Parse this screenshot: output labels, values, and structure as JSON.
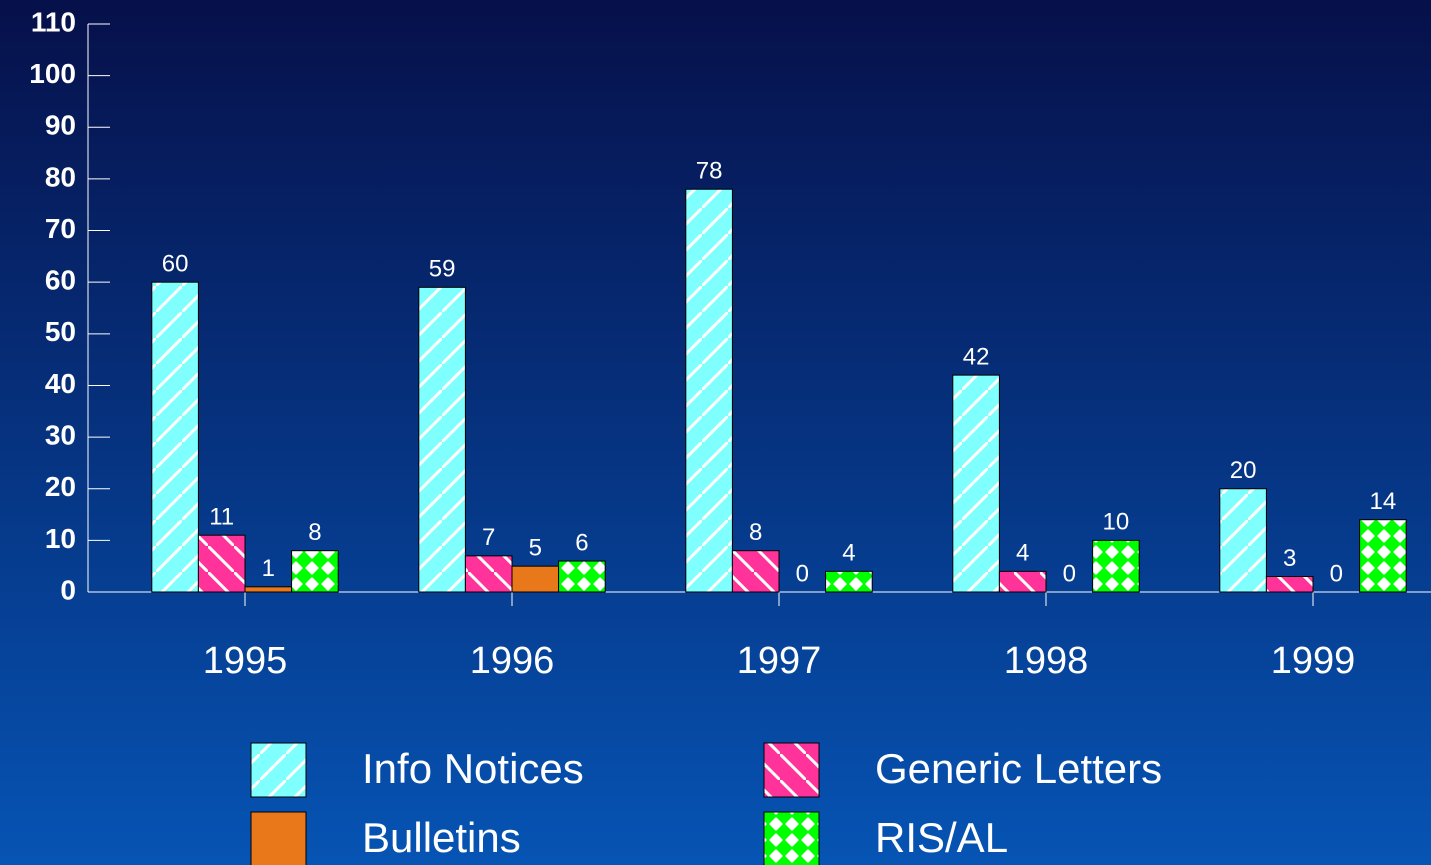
{
  "chart_data": {
    "type": "bar",
    "categories": [
      "1995",
      "1996",
      "1997",
      "1998",
      "1999"
    ],
    "series": [
      {
        "name": "Info Notices",
        "color": "#80ffff",
        "values": [
          60,
          59,
          78,
          42,
          20
        ]
      },
      {
        "name": "Generic Letters",
        "color": "#ff3399",
        "values": [
          11,
          7,
          8,
          4,
          3
        ]
      },
      {
        "name": "Bulletins",
        "color": "#e8781a",
        "values": [
          1,
          5,
          0,
          0,
          0
        ]
      },
      {
        "name": "RIS/AL",
        "color": "#00ff00",
        "values": [
          8,
          6,
          4,
          10,
          14
        ]
      }
    ],
    "ylim": [
      0,
      110
    ],
    "yticks": [
      0,
      10,
      20,
      30,
      40,
      50,
      60,
      70,
      80,
      90,
      100,
      110
    ],
    "grid": false
  }
}
